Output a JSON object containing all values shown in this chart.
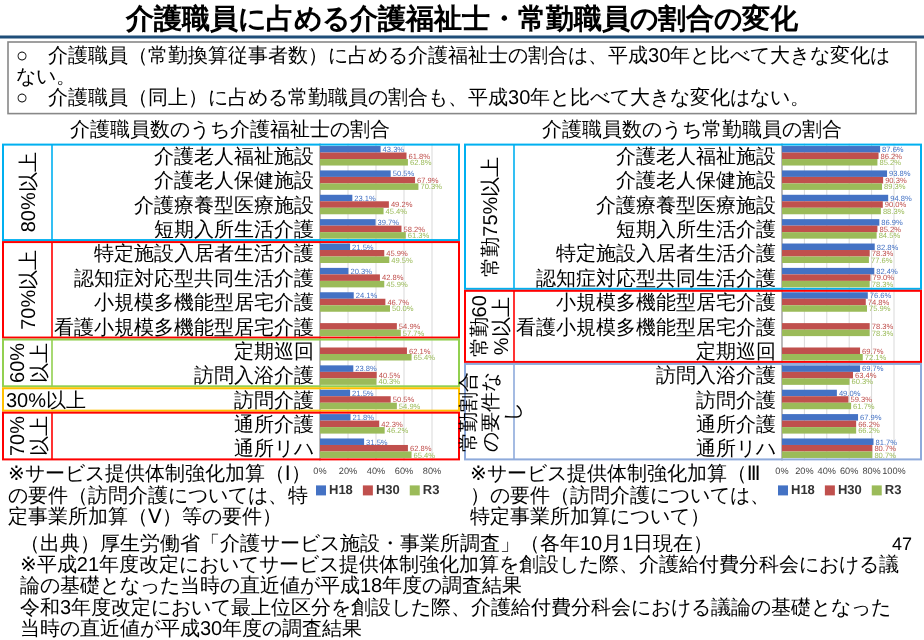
{
  "chart_data": [
    {
      "type": "bar",
      "orientation": "horizontal",
      "title": "介護職員数のうち介護福祉士の割合",
      "categories": [
        "介護老人福祉施設",
        "介護老人保健施設",
        "介護療養型医療施設",
        "短期入所生活介護",
        "特定施設入居者生活介護",
        "認知症対応型共同生活介護",
        "小規模多機能型居宅介護",
        "看護小規模多機能型居宅介護",
        "定期巡回",
        "訪問入浴介護",
        "訪問介護",
        "通所介護",
        "通所リハ"
      ],
      "series": [
        {
          "name": "H18",
          "color": "#4472c4",
          "values": [
            43.3,
            50.5,
            23.1,
            39.7,
            21.5,
            20.3,
            24.1,
            null,
            null,
            23.8,
            21.5,
            21.8,
            31.5
          ],
          "value_labels": [
            "43.3%",
            "50.5%",
            "23.1%",
            "39.7%",
            "21.5%",
            "20.3%",
            "24.1%",
            null,
            null,
            "23.8%",
            "21.5%",
            "21.8%",
            "31.5%"
          ]
        },
        {
          "name": "H30",
          "color": "#c0504d",
          "values": [
            61.8,
            67.9,
            49.2,
            58.2,
            45.9,
            42.8,
            46.7,
            54.9,
            62.1,
            40.5,
            50.5,
            42.3,
            62.8
          ],
          "value_labels": [
            "61.8%",
            "67.9%",
            "49.2%",
            "58.2%",
            "45.9%",
            "42.8%",
            "46.7%",
            "54.9%",
            "62.1%",
            "40.5%",
            "50.5%",
            "42.3%",
            "62.8%"
          ]
        },
        {
          "name": "R3",
          "color": "#9bbb59",
          "values": [
            62.8,
            70.3,
            45.4,
            61.3,
            49.5,
            45.9,
            50.0,
            57.7,
            65.4,
            40.3,
            54.9,
            46.2,
            65.4
          ],
          "value_labels": [
            "62.8%",
            "70.3%",
            "45.4%",
            "61.3%",
            "49.5%",
            "45.9%",
            "50.0%",
            "57.7%",
            "65.4%",
            "40.3%",
            "54.9%",
            "46.2%",
            "65.4%"
          ]
        }
      ],
      "xlim": [
        0,
        80
      ],
      "xticks": [
        {
          "value": 0,
          "label": "0%"
        },
        {
          "value": 20,
          "label": "20%"
        },
        {
          "value": 40,
          "label": "40%"
        },
        {
          "value": 60,
          "label": "60%"
        },
        {
          "value": 80,
          "label": "80%"
        }
      ],
      "grid": "x",
      "legend": "bottom",
      "annotations": [
        "介護職員に占める介護福祉士・常勤職員の割合の変化",
        "○　介護職員（常勤換算従事者数）に占める介護福祉士の割合は、平成30年と比べて大きな変化はない。",
        "○　介護職員（同上）に占める常勤職員の割合も、平成30年と比べて大きな変化はない。",
        "80%以上",
        "70%以上",
        "60%以上",
        "30%以上",
        "70%以上",
        "※サービス提供体制強化加算（Ⅰ）の要件（訪問介護については、特定事業所加算（Ⅴ）等の要件）",
        "（出典）厚生労働省「介護サービス施設・事業所調査」（各年10月1日現在）",
        "※平成21年度改定においてサービス提供体制強化加算を創設した際、介護給付費分科会における議論の基礎となった当時の直近値が平成18年度の調査結果",
        "令和3年度改定において最上位区分を創設した際、介護給付費分科会における議論の基礎となった当時の直近値が平成30年度の調査結果",
        "47"
      ]
    },
    {
      "type": "bar",
      "orientation": "horizontal",
      "title": "介護職員数のうち常勤職員の割合",
      "categories": [
        "介護老人福祉施設",
        "介護老人保健施設",
        "介護療養型医療施設",
        "短期入所生活介護",
        "特定施設入居者生活介護",
        "認知症対応型共同生活介護",
        "小規模多機能型居宅介護",
        "看護小規模多機能型居宅介護",
        "定期巡回",
        "訪問入浴介護",
        "訪問介護",
        "通所介護",
        "通所リハ"
      ],
      "series": [
        {
          "name": "H18",
          "color": "#4472c4",
          "values": [
            87.6,
            93.8,
            94.8,
            86.9,
            82.8,
            82.4,
            76.6,
            null,
            null,
            69.7,
            49.0,
            67.9,
            81.7
          ],
          "value_labels": [
            "87.6%",
            "93.8%",
            "94.8%",
            "86.9%",
            "82.8%",
            "82.4%",
            "76.6%",
            null,
            null,
            "69.7%",
            "49.0%",
            "67.9%",
            "81.7%"
          ]
        },
        {
          "name": "H30",
          "color": "#c0504d",
          "values": [
            86.2,
            90.3,
            90.0,
            85.2,
            78.3,
            79.0,
            74.8,
            78.3,
            69.7,
            63.4,
            59.3,
            66.2,
            80.7
          ],
          "value_labels": [
            "86.2%",
            "90.3%",
            "90.0%",
            "85.2%",
            "78.3%",
            "79.0%",
            "74.8%",
            "78.3%",
            "69.7%",
            "63.4%",
            "59.3%",
            "66.2%",
            "80.7%"
          ]
        },
        {
          "name": "R3",
          "color": "#9bbb59",
          "values": [
            85.2,
            89.3,
            88.3,
            84.5,
            77.6,
            78.3,
            75.9,
            78.3,
            72.1,
            60.3,
            61.7,
            66.2,
            80.7
          ],
          "value_labels": [
            "85.2%",
            "89.3%",
            "88.3%",
            "84.5%",
            "77.6%",
            "78.3%",
            "75.9%",
            "78.3%",
            "72.1%",
            "60.3%",
            "61.7%",
            "66.2%",
            "80.7%"
          ]
        }
      ],
      "xlim": [
        0,
        100
      ],
      "xticks": [
        {
          "value": 0,
          "label": "0%"
        },
        {
          "value": 20,
          "label": "20%"
        },
        {
          "value": 40,
          "label": "40%"
        },
        {
          "value": 60,
          "label": "60%"
        },
        {
          "value": 80,
          "label": "80%"
        },
        {
          "value": 100,
          "label": "100%"
        }
      ],
      "grid": "x",
      "legend": "bottom",
      "annotations": [
        "常勤75%以上",
        "常勤60%以上",
        "常勤割合の要件なし",
        "※サービス提供体制強化加算（Ⅲ）の要件（訪問介護については、特定事業所加算について）"
      ]
    }
  ]
}
